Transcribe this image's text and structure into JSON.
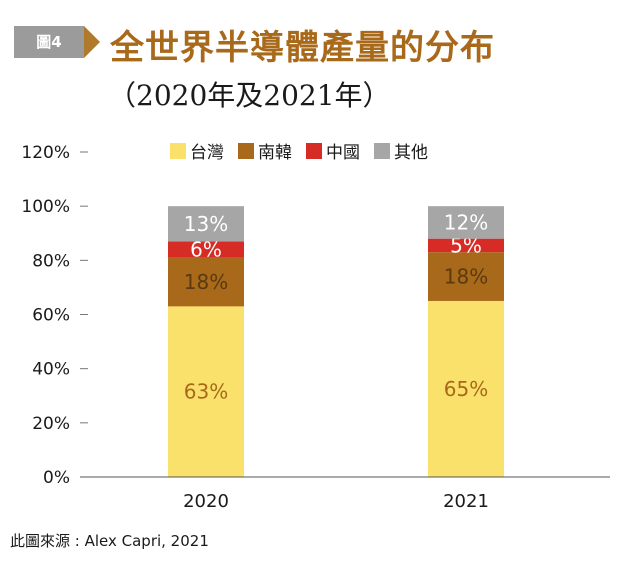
{
  "header": {
    "figure_label": "圖4",
    "title": "全世界半導體產量的分布",
    "subtitle": "（2020年及2021年）"
  },
  "source": "此圖來源 : Alex Capri, 2021",
  "chart_data": {
    "type": "bar",
    "stacked": true,
    "categories": [
      "2020",
      "2021"
    ],
    "series": [
      {
        "name": "台灣",
        "color": "#f9e16b",
        "values": [
          63,
          65
        ],
        "labels": [
          "63%",
          "65%"
        ]
      },
      {
        "name": "南韓",
        "color": "#a8691b",
        "values": [
          18,
          18
        ],
        "labels": [
          "18%",
          "18%"
        ]
      },
      {
        "name": "中國",
        "color": "#d72b25",
        "values": [
          6,
          5
        ],
        "labels": [
          "6%",
          "5%"
        ]
      },
      {
        "name": "其他",
        "color": "#a6a6a6",
        "values": [
          13,
          12
        ],
        "labels": [
          "13%",
          "12%"
        ]
      }
    ],
    "ylim": [
      0,
      120
    ],
    "yticks": [
      "0%",
      "20%",
      "40%",
      "60%",
      "80%",
      "100%",
      "120%"
    ],
    "ytick_values": [
      0,
      20,
      40,
      60,
      80,
      100,
      120
    ],
    "grid": false,
    "legend": "top"
  }
}
